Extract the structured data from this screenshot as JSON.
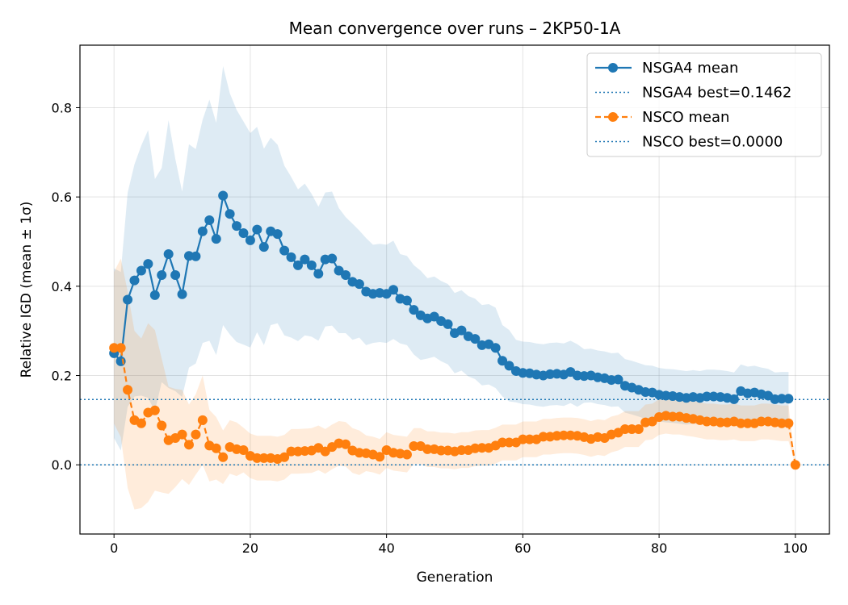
{
  "chart_data": {
    "type": "line",
    "title": "Mean convergence over runs – 2KP50-1A",
    "xlabel": "Generation",
    "ylabel": "Relative IGD (mean ± 1σ)",
    "xlim": [
      -5,
      105
    ],
    "ylim": [
      -0.155,
      0.94
    ],
    "xticks": [
      0,
      20,
      40,
      60,
      80,
      100
    ],
    "yticks": [
      0.0,
      0.2,
      0.4,
      0.6,
      0.8
    ],
    "grid": true,
    "legend_position": "top-right",
    "series": [
      {
        "name": "NSGA4 mean",
        "color": "#1f77b4",
        "linestyle": "solid",
        "marker": "circle",
        "x": [
          0,
          1,
          2,
          3,
          4,
          5,
          6,
          7,
          8,
          9,
          10,
          11,
          12,
          13,
          14,
          15,
          16,
          17,
          18,
          19,
          20,
          21,
          22,
          23,
          24,
          25,
          26,
          27,
          28,
          29,
          30,
          31,
          32,
          33,
          34,
          35,
          36,
          37,
          38,
          39,
          40,
          41,
          42,
          43,
          44,
          45,
          46,
          47,
          48,
          49,
          50,
          51,
          52,
          53,
          54,
          55,
          56,
          57,
          58,
          59,
          60,
          61,
          62,
          63,
          64,
          65,
          66,
          67,
          68,
          69,
          70,
          71,
          72,
          73,
          74,
          75,
          76,
          77,
          78,
          79,
          80,
          81,
          82,
          83,
          84,
          85,
          86,
          87,
          88,
          89,
          90,
          91,
          92,
          93,
          94,
          95,
          96,
          97,
          98,
          99
        ],
        "values": [
          0.25,
          0.232,
          0.37,
          0.413,
          0.435,
          0.45,
          0.38,
          0.425,
          0.472,
          0.425,
          0.382,
          0.468,
          0.467,
          0.523,
          0.548,
          0.506,
          0.603,
          0.562,
          0.535,
          0.519,
          0.503,
          0.527,
          0.488,
          0.523,
          0.517,
          0.48,
          0.465,
          0.447,
          0.46,
          0.447,
          0.428,
          0.46,
          0.462,
          0.435,
          0.425,
          0.41,
          0.405,
          0.388,
          0.383,
          0.385,
          0.383,
          0.392,
          0.372,
          0.368,
          0.347,
          0.335,
          0.328,
          0.332,
          0.322,
          0.315,
          0.295,
          0.301,
          0.288,
          0.282,
          0.268,
          0.27,
          0.262,
          0.233,
          0.222,
          0.21,
          0.206,
          0.205,
          0.202,
          0.2,
          0.203,
          0.204,
          0.202,
          0.208,
          0.2,
          0.199,
          0.2,
          0.196,
          0.194,
          0.19,
          0.191,
          0.177,
          0.173,
          0.168,
          0.163,
          0.162,
          0.157,
          0.155,
          0.154,
          0.152,
          0.15,
          0.152,
          0.15,
          0.153,
          0.153,
          0.152,
          0.15,
          0.147,
          0.165,
          0.16,
          0.162,
          0.158,
          0.155,
          0.147,
          0.148,
          0.148
        ],
        "std": [
          0.19,
          0.2,
          0.24,
          0.26,
          0.28,
          0.3,
          0.26,
          0.24,
          0.3,
          0.26,
          0.23,
          0.25,
          0.24,
          0.25,
          0.27,
          0.26,
          0.29,
          0.27,
          0.26,
          0.25,
          0.24,
          0.23,
          0.22,
          0.21,
          0.2,
          0.19,
          0.18,
          0.17,
          0.17,
          0.16,
          0.15,
          0.15,
          0.15,
          0.14,
          0.13,
          0.13,
          0.12,
          0.12,
          0.11,
          0.11,
          0.11,
          0.11,
          0.1,
          0.1,
          0.1,
          0.1,
          0.09,
          0.09,
          0.09,
          0.09,
          0.09,
          0.09,
          0.09,
          0.09,
          0.09,
          0.09,
          0.09,
          0.08,
          0.08,
          0.07,
          0.07,
          0.07,
          0.07,
          0.07,
          0.07,
          0.07,
          0.07,
          0.07,
          0.07,
          0.06,
          0.06,
          0.06,
          0.06,
          0.06,
          0.06,
          0.06,
          0.06,
          0.06,
          0.06,
          0.06,
          0.06,
          0.06,
          0.06,
          0.06,
          0.06,
          0.06,
          0.06,
          0.06,
          0.06,
          0.06,
          0.06,
          0.06,
          0.06,
          0.06,
          0.06,
          0.06,
          0.06,
          0.06,
          0.06,
          0.06
        ]
      },
      {
        "name": "NSGA4 best=0.1462",
        "color": "#1f77b4",
        "linestyle": "dotted",
        "y": 0.1462
      },
      {
        "name": "NSCO mean",
        "color": "#ff7f0e",
        "linestyle": "dashed",
        "marker": "circle",
        "x": [
          0,
          1,
          2,
          3,
          4,
          5,
          6,
          7,
          8,
          9,
          10,
          11,
          12,
          13,
          14,
          15,
          16,
          17,
          18,
          19,
          20,
          21,
          22,
          23,
          24,
          25,
          26,
          27,
          28,
          29,
          30,
          31,
          32,
          33,
          34,
          35,
          36,
          37,
          38,
          39,
          40,
          41,
          42,
          43,
          44,
          45,
          46,
          47,
          48,
          49,
          50,
          51,
          52,
          53,
          54,
          55,
          56,
          57,
          58,
          59,
          60,
          61,
          62,
          63,
          64,
          65,
          66,
          67,
          68,
          69,
          70,
          71,
          72,
          73,
          74,
          75,
          76,
          77,
          78,
          79,
          80,
          81,
          82,
          83,
          84,
          85,
          86,
          87,
          88,
          89,
          90,
          91,
          92,
          93,
          94,
          95,
          96,
          97,
          98,
          99,
          100
        ],
        "values": [
          0.262,
          0.262,
          0.168,
          0.1,
          0.093,
          0.117,
          0.122,
          0.088,
          0.055,
          0.06,
          0.068,
          0.045,
          0.068,
          0.1,
          0.043,
          0.037,
          0.017,
          0.04,
          0.035,
          0.033,
          0.02,
          0.015,
          0.015,
          0.015,
          0.013,
          0.017,
          0.03,
          0.03,
          0.031,
          0.032,
          0.038,
          0.03,
          0.04,
          0.048,
          0.046,
          0.032,
          0.027,
          0.026,
          0.023,
          0.018,
          0.033,
          0.027,
          0.025,
          0.023,
          0.042,
          0.042,
          0.035,
          0.035,
          0.032,
          0.032,
          0.03,
          0.033,
          0.033,
          0.037,
          0.038,
          0.038,
          0.043,
          0.05,
          0.05,
          0.05,
          0.057,
          0.057,
          0.057,
          0.063,
          0.063,
          0.065,
          0.066,
          0.066,
          0.065,
          0.062,
          0.058,
          0.062,
          0.06,
          0.068,
          0.072,
          0.08,
          0.08,
          0.08,
          0.095,
          0.097,
          0.107,
          0.11,
          0.108,
          0.108,
          0.105,
          0.103,
          0.1,
          0.097,
          0.097,
          0.095,
          0.095,
          0.097,
          0.093,
          0.093,
          0.093,
          0.097,
          0.097,
          0.095,
          0.093,
          0.093,
          0.0
        ],
        "std": [
          0.17,
          0.2,
          0.22,
          0.2,
          0.19,
          0.2,
          0.18,
          0.15,
          0.12,
          0.11,
          0.1,
          0.09,
          0.09,
          0.1,
          0.08,
          0.07,
          0.06,
          0.06,
          0.06,
          0.05,
          0.05,
          0.05,
          0.05,
          0.05,
          0.05,
          0.05,
          0.05,
          0.05,
          0.05,
          0.05,
          0.05,
          0.05,
          0.05,
          0.05,
          0.05,
          0.05,
          0.05,
          0.04,
          0.04,
          0.04,
          0.04,
          0.04,
          0.04,
          0.04,
          0.04,
          0.04,
          0.04,
          0.04,
          0.04,
          0.04,
          0.04,
          0.04,
          0.04,
          0.04,
          0.04,
          0.04,
          0.04,
          0.04,
          0.04,
          0.04,
          0.04,
          0.04,
          0.04,
          0.04,
          0.04,
          0.04,
          0.04,
          0.04,
          0.04,
          0.04,
          0.04,
          0.04,
          0.04,
          0.04,
          0.04,
          0.04,
          0.04,
          0.04,
          0.04,
          0.04,
          0.04,
          0.04,
          0.04,
          0.04,
          0.04,
          0.04,
          0.04,
          0.04,
          0.04,
          0.04,
          0.04,
          0.04,
          0.04,
          0.04,
          0.04,
          0.04,
          0.04,
          0.04,
          0.04,
          0.04,
          0.0
        ]
      },
      {
        "name": "NSCO best=0.0000",
        "color": "#1f77b4",
        "linestyle": "dotted",
        "y": 0.0
      }
    ]
  }
}
